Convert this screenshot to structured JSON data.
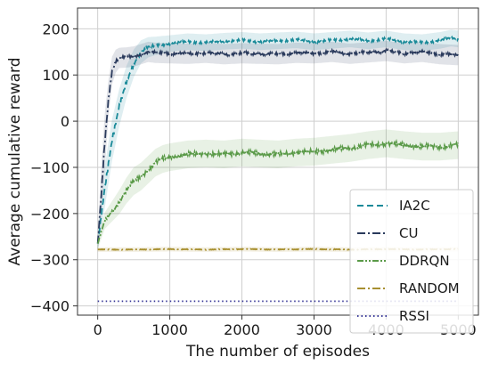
{
  "chart_data": {
    "type": "line",
    "title": "",
    "xlabel": "The number of episodes",
    "ylabel": "Average cumulative reward",
    "xlim": [
      -280,
      5280
    ],
    "ylim": [
      -420,
      245
    ],
    "xticks": [
      0,
      1000,
      2000,
      3000,
      4000,
      5000
    ],
    "yticks": [
      -400,
      -300,
      -200,
      -100,
      0,
      100,
      200
    ],
    "xtick_labels": [
      "0",
      "1000",
      "2000",
      "3000",
      "4000",
      "5000"
    ],
    "ytick_labels": [
      "−400",
      "−300",
      "−200",
      "−100",
      "0",
      "100",
      "200"
    ],
    "grid": true,
    "legend_position": "lower-right",
    "series": [
      {
        "name": "IA2C",
        "color": "#1a8a99",
        "dash": "dashed",
        "x": [
          0,
          100,
          200,
          300,
          400,
          500,
          600,
          700,
          800,
          1000,
          1250,
          1500,
          1750,
          2000,
          2250,
          2500,
          2750,
          3000,
          3250,
          3500,
          3750,
          4000,
          4250,
          4500,
          4750,
          4900,
          5000
        ],
        "y": [
          -265,
          -140,
          -40,
          30,
          85,
          125,
          150,
          160,
          163,
          168,
          172,
          170,
          173,
          175,
          172,
          174,
          176,
          172,
          175,
          178,
          174,
          178,
          172,
          170,
          175,
          180,
          178
        ],
        "band": [
          16,
          45,
          45,
          40,
          35,
          30,
          25,
          22,
          20,
          18,
          18,
          18,
          18,
          18,
          18,
          18,
          18,
          18,
          18,
          18,
          18,
          18,
          18,
          18,
          18,
          18,
          18
        ]
      },
      {
        "name": "CU",
        "color": "#2a3a5c",
        "dash": "dashdot",
        "x": [
          0,
          50,
          100,
          150,
          200,
          250,
          300,
          400,
          500,
          600,
          700,
          800,
          1000,
          1250,
          1500,
          1750,
          2000,
          2250,
          2500,
          2750,
          3000,
          3250,
          3500,
          3750,
          4000,
          4250,
          4500,
          4750,
          5000
        ],
        "y": [
          -265,
          -160,
          -40,
          50,
          110,
          130,
          137,
          138,
          140,
          145,
          150,
          148,
          147,
          146,
          148,
          145,
          147,
          146,
          145,
          148,
          147,
          150,
          146,
          149,
          152,
          147,
          150,
          145,
          143
        ],
        "band": [
          16,
          60,
          60,
          40,
          30,
          25,
          22,
          22,
          22,
          22,
          22,
          22,
          22,
          22,
          22,
          22,
          22,
          22,
          22,
          22,
          22,
          22,
          22,
          22,
          22,
          22,
          22,
          22,
          22
        ]
      },
      {
        "name": "DDRQN",
        "color": "#5a9a48",
        "dash": "dashdotdot",
        "x": [
          0,
          100,
          200,
          300,
          400,
          500,
          600,
          700,
          800,
          900,
          1000,
          1250,
          1500,
          1750,
          2000,
          2250,
          2500,
          2750,
          3000,
          3250,
          3500,
          3750,
          4000,
          4250,
          4500,
          4750,
          5000
        ],
        "y": [
          -265,
          -215,
          -195,
          -175,
          -150,
          -130,
          -120,
          -105,
          -90,
          -82,
          -78,
          -72,
          -70,
          -72,
          -68,
          -70,
          -72,
          -68,
          -66,
          -62,
          -58,
          -52,
          -48,
          -52,
          -55,
          -55,
          -52
        ],
        "band": [
          12,
          18,
          22,
          26,
          28,
          30,
          30,
          30,
          30,
          30,
          30,
          30,
          30,
          30,
          30,
          30,
          30,
          30,
          30,
          30,
          30,
          30,
          30,
          30,
          30,
          30,
          30
        ]
      },
      {
        "name": "RANDOM",
        "color": "#a89030",
        "dash": "dashdot",
        "x": [
          0,
          500,
          1000,
          1500,
          2000,
          2500,
          3000,
          3500,
          4000,
          4500,
          5000
        ],
        "y": [
          -278,
          -278,
          -277,
          -278,
          -277,
          -278,
          -277,
          -278,
          -277,
          -278,
          -277
        ],
        "band": [
          5,
          5,
          5,
          5,
          5,
          5,
          5,
          5,
          5,
          5,
          5
        ]
      },
      {
        "name": "RSSI",
        "color": "#3a3a99",
        "dash": "dotted",
        "x": [
          0,
          1000,
          2000,
          3000,
          4000,
          5000
        ],
        "y": [
          -390,
          -390,
          -390,
          -390,
          -390,
          -390
        ],
        "band": [
          0,
          0,
          0,
          0,
          0,
          0
        ]
      }
    ]
  }
}
